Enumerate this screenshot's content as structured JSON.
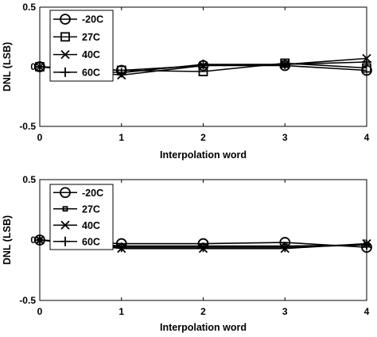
{
  "chart_data": [
    {
      "type": "line",
      "xlabel": "Interpolation word",
      "ylabel": "DNL (LSB)",
      "x": [
        0,
        1,
        2,
        3,
        4
      ],
      "xlim": [
        0,
        4
      ],
      "ylim": [
        -0.5,
        0.5
      ],
      "xticks": [
        "0",
        "1",
        "2",
        "3",
        "4"
      ],
      "yticks": [
        "0.5",
        "0",
        "-0.5"
      ],
      "grid": false,
      "legend_position": "top-left",
      "series": [
        {
          "name": "-20C",
          "marker": "circle",
          "values": [
            0,
            -0.03,
            0.01,
            0.01,
            -0.03
          ]
        },
        {
          "name": "27C",
          "marker": "square",
          "values": [
            0,
            -0.03,
            -0.04,
            0.03,
            -0.01
          ]
        },
        {
          "name": "40C",
          "marker": "x",
          "values": [
            0,
            -0.07,
            0.01,
            0.02,
            0.07
          ]
        },
        {
          "name": "60C",
          "marker": "plus",
          "values": [
            0,
            -0.05,
            0.02,
            0.02,
            0.04
          ]
        }
      ]
    },
    {
      "type": "line",
      "xlabel": "Interpolation word",
      "ylabel": "DNL (LSB)",
      "x": [
        0,
        1,
        2,
        3,
        4
      ],
      "xlim": [
        0,
        4
      ],
      "ylim": [
        -0.5,
        0.5
      ],
      "xticks": [
        "0",
        "1",
        "2",
        "3",
        "4"
      ],
      "yticks": [
        "0.5",
        "0",
        "-0.5"
      ],
      "grid": false,
      "legend_position": "top-left",
      "series": [
        {
          "name": "-20C",
          "marker": "circle",
          "values": [
            0,
            -0.03,
            -0.03,
            -0.02,
            -0.06
          ]
        },
        {
          "name": "27C",
          "marker": "square-small",
          "values": [
            0,
            -0.05,
            -0.05,
            -0.05,
            -0.04
          ]
        },
        {
          "name": "40C",
          "marker": "x",
          "values": [
            0,
            -0.07,
            -0.07,
            -0.07,
            -0.03
          ]
        },
        {
          "name": "60C",
          "marker": "plus",
          "values": [
            0,
            -0.06,
            -0.06,
            -0.06,
            -0.04
          ]
        }
      ]
    }
  ]
}
